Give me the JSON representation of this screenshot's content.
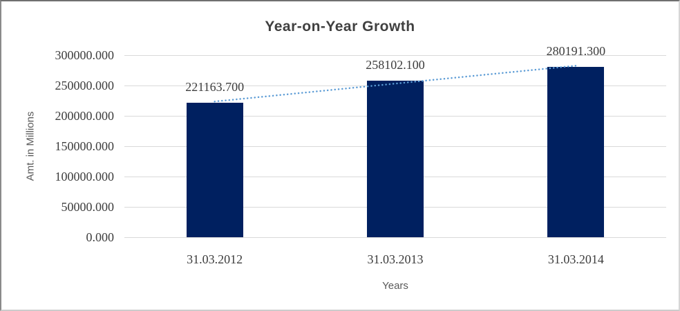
{
  "chart_data": {
    "type": "bar",
    "title": "Year-on-Year Growth",
    "xlabel": "Years",
    "ylabel": "Amt. in Millions",
    "categories": [
      "31.03.2012",
      "31.03.2013",
      "31.03.2014"
    ],
    "values": [
      221163.7,
      258102.1,
      280191.3
    ],
    "data_labels": [
      "221163.700",
      "258102.100",
      "280191.300"
    ],
    "ylim": [
      0,
      300000
    ],
    "ytick_interval": 50000,
    "ytick_labels": [
      "300000.000",
      "250000.000",
      "200000.000",
      "150000.000",
      "100000.000",
      "50000.000",
      "0.000"
    ],
    "grid": true,
    "legend": "none",
    "trendline": {
      "kind": "linear-dotted",
      "fitted_endpoint_values": [
        223638.6,
        282666.2
      ],
      "color": "#5B9BD5"
    },
    "colors": {
      "bar": "#002060",
      "gridline": "#D9D9D9",
      "number_text": "#3d3d3d",
      "axis_title_text": "#595959",
      "title_text": "#404040",
      "trendline": "#5B9BD5"
    }
  }
}
